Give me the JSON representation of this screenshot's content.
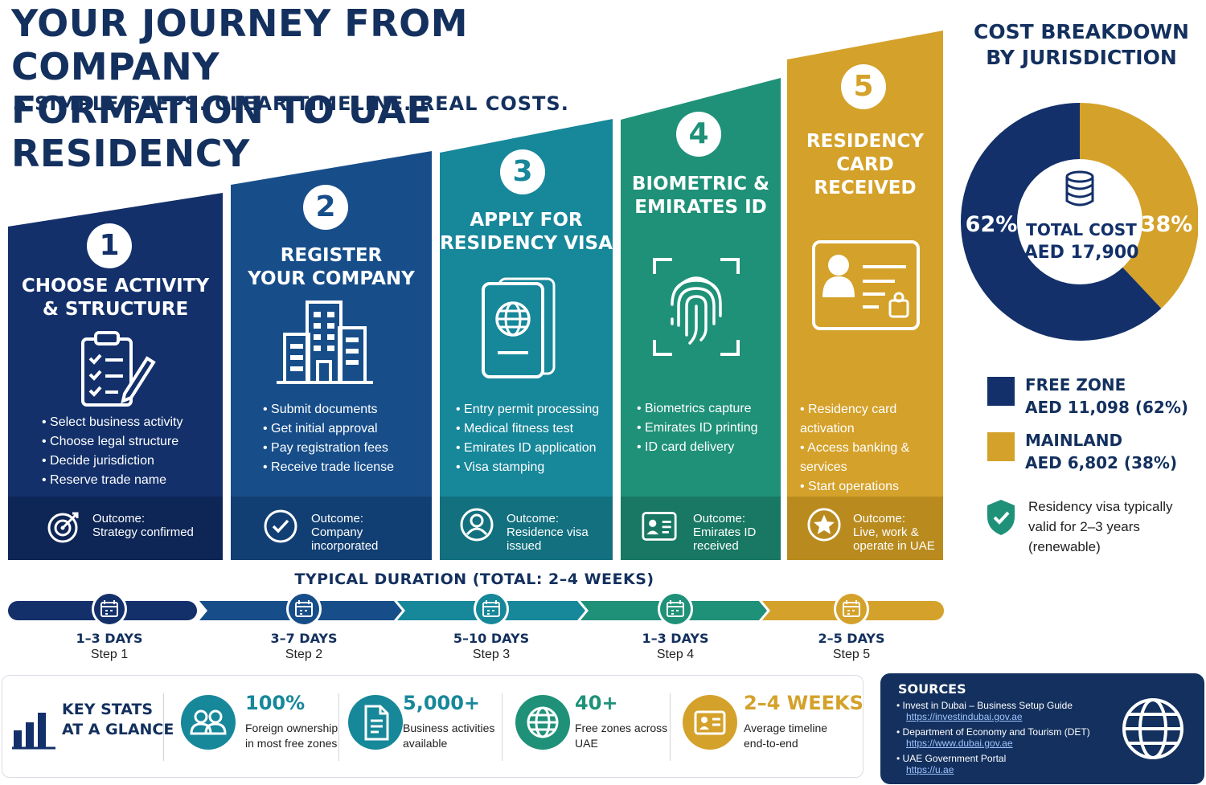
{
  "header": {
    "title_line1": "YOUR JOURNEY FROM COMPANY",
    "title_line2": "FORMATION TO UAE RESIDENCY",
    "subtitle": "5 SIMPLE STEPS. CLEAR TIMELINE. REAL COSTS."
  },
  "steps": [
    {
      "number": "1",
      "title1": "CHOOSE ACTIVITY",
      "title2": "& STRUCTURE",
      "icon": "clipboard-checklist-icon",
      "bullets": [
        "Select business activity",
        "Choose legal structure",
        "Decide jurisdiction",
        "Reserve trade name"
      ],
      "outcome_label": "Outcome:",
      "outcome": "Strategy confirmed",
      "outcome_icon": "target-icon",
      "color": "#13306a"
    },
    {
      "number": "2",
      "title1": "REGISTER",
      "title2": "YOUR COMPANY",
      "icon": "building-icon",
      "bullets": [
        "Submit documents",
        "Get initial approval",
        "Pay registration fees",
        "Receive trade license"
      ],
      "outcome_label": "Outcome:",
      "outcome": "Company\nincorporated",
      "outcome_icon": "check-circle-icon",
      "color": "#174e8a"
    },
    {
      "number": "3",
      "title1": "APPLY FOR",
      "title2": "RESIDENCY VISA",
      "icon": "passport-icon",
      "bullets": [
        "Entry permit processing",
        "Medical fitness test",
        "Emirates ID application",
        "Visa stamping"
      ],
      "outcome_label": "Outcome:",
      "outcome": "Residence visa\nissued",
      "outcome_icon": "user-circle-icon",
      "color": "#17879a"
    },
    {
      "number": "4",
      "title1": "BIOMETRIC &",
      "title2": "EMIRATES ID",
      "icon": "fingerprint-icon",
      "bullets": [
        "Biometrics capture",
        "Emirates ID printing",
        "ID card delivery"
      ],
      "outcome_label": "Outcome:",
      "outcome": "Emirates ID\nreceived",
      "outcome_icon": "id-card-icon",
      "color": "#1f9178"
    },
    {
      "number": "5",
      "title1": "RESIDENCY",
      "title2": "CARD RECEIVED",
      "icon": "residency-card-icon",
      "bullets": [
        "Residency card activation",
        "Access banking & services",
        "Start operations"
      ],
      "outcome_label": "Outcome:",
      "outcome": "Live, work &\noperate in UAE",
      "outcome_icon": "star-badge-icon",
      "color": "#d4a12a"
    }
  ],
  "duration": {
    "title": "TYPICAL DURATION (TOTAL: 2–4 WEEKS)",
    "items": [
      {
        "days": "1–3 DAYS",
        "step": "Step 1"
      },
      {
        "days": "3–7 DAYS",
        "step": "Step 2"
      },
      {
        "days": "5–10 DAYS",
        "step": "Step 3"
      },
      {
        "days": "1–3 DAYS",
        "step": "Step 4"
      },
      {
        "days": "2–5 DAYS",
        "step": "Step 5"
      }
    ]
  },
  "cost": {
    "title1": "COST BREAKDOWN",
    "title2": "BY JURISDICTION",
    "center_label": "TOTAL COST",
    "center_value": "AED 17,900",
    "center_icon": "coin-stack-icon",
    "left_pct": "62%",
    "right_pct": "38%",
    "legend": [
      {
        "name": "FREE ZONE",
        "amount": "AED 11,098 (62%)",
        "color": "#13306a"
      },
      {
        "name": "MAINLAND",
        "amount": "AED 6,802 (38%)",
        "color": "#d4a12a"
      }
    ],
    "note": "Residency visa typically valid for 2–3 years (renewable)",
    "note_icon": "shield-check-icon"
  },
  "chart_data": {
    "type": "pie",
    "categories": [
      "FREE ZONE",
      "MAINLAND"
    ],
    "values": [
      62,
      38
    ],
    "amounts": [
      11098,
      6802
    ],
    "total": 17900,
    "colors": [
      "#13306a",
      "#d4a12a"
    ],
    "title": "COST BREAKDOWN BY JURISDICTION"
  },
  "stats": {
    "title1": "KEY STATS",
    "title2": "AT A GLANCE",
    "items": [
      {
        "value": "100%",
        "desc": "Foreign ownership\nin most free zones",
        "icon": "people-icon",
        "color": "#17879a"
      },
      {
        "value": "5,000+",
        "desc": "Business activities\navailable",
        "icon": "document-icon",
        "color": "#17879a"
      },
      {
        "value": "40+",
        "desc": "Free zones across\nUAE",
        "icon": "globe-icon",
        "color": "#1f9178"
      },
      {
        "value": "2–4 WEEKS",
        "desc": "Average timeline\nend-to-end",
        "icon": "id-card-icon",
        "color": "#d4a12a"
      }
    ]
  },
  "sources": {
    "title": "SOURCES",
    "items": [
      {
        "name": "Invest in Dubai – Business Setup Guide",
        "url": "https://investindubai.gov.ae"
      },
      {
        "name": "Department of Economy and Tourism (DET)",
        "url": "https://www.dubai.gov.ae"
      },
      {
        "name": "UAE Government Portal",
        "url": "https://u.ae"
      }
    ]
  }
}
